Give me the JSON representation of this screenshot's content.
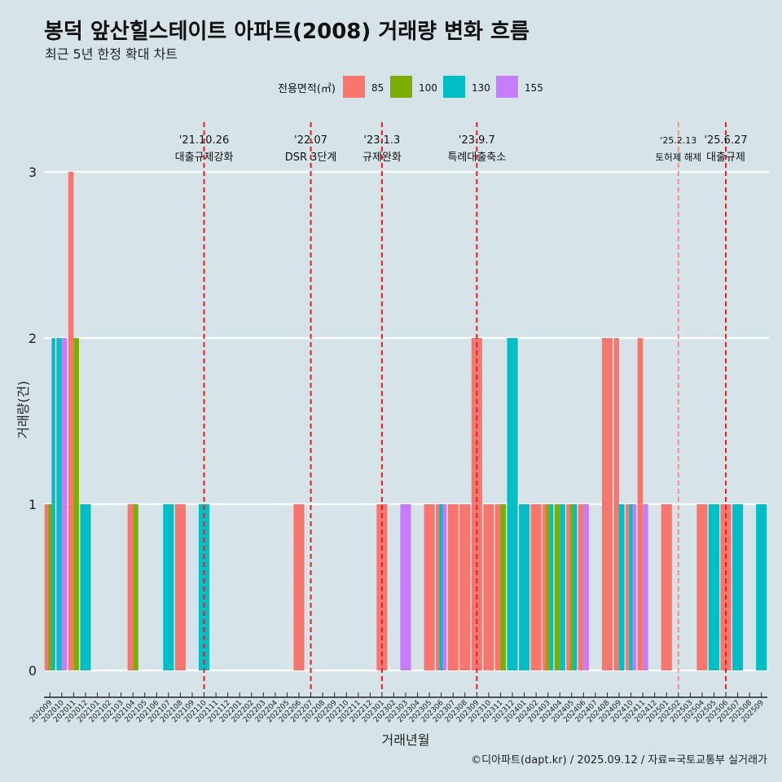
{
  "title": "봉덕 앞산힐스테이트 아파트(2008) 거래량 변화 흐름",
  "subtitle": "최근 5년 한정 확대 차트",
  "caption": "©디아파트(dapt.kr) / 2025.09.12 / 자료=국토교통부 실거래가",
  "chart_data": {
    "type": "bar",
    "xlabel": "거래년월",
    "ylabel": "거래량(건)",
    "ylim": [
      0,
      3
    ],
    "yticks": [
      0,
      1,
      2,
      3
    ],
    "legend": {
      "title": "전용면적(㎡)",
      "position": "top",
      "entries": [
        {
          "name": "85",
          "color": "#F8766D"
        },
        {
          "name": "100",
          "color": "#7CAE00"
        },
        {
          "name": "130",
          "color": "#00BFC4"
        },
        {
          "name": "155",
          "color": "#C77CFF"
        }
      ]
    },
    "categories": [
      "202009",
      "202010",
      "202011",
      "202012",
      "202101",
      "202102",
      "202103",
      "202104",
      "202105",
      "202106",
      "202107",
      "202108",
      "202109",
      "202110",
      "202111",
      "202112",
      "202201",
      "202202",
      "202203",
      "202204",
      "202205",
      "202206",
      "202207",
      "202208",
      "202209",
      "202210",
      "202211",
      "202212",
      "202301",
      "202302",
      "202303",
      "202304",
      "202305",
      "202306",
      "202307",
      "202308",
      "202309",
      "202310",
      "202311",
      "202312",
      "202401",
      "202402",
      "202403",
      "202404",
      "202405",
      "202406",
      "202407",
      "202408",
      "202409",
      "202410",
      "202411",
      "202412",
      "202501",
      "202502",
      "202503",
      "202504",
      "202505",
      "202506",
      "202507",
      "202508",
      "202509"
    ],
    "series": [
      {
        "name": "85",
        "color": "#F8766D",
        "values": [
          1,
          0,
          3,
          0,
          0,
          0,
          0,
          1,
          0,
          0,
          0,
          1,
          0,
          0,
          0,
          0,
          0,
          0,
          0,
          0,
          0,
          1,
          0,
          0,
          0,
          0,
          0,
          0,
          1,
          0,
          0,
          0,
          1,
          1,
          1,
          1,
          2,
          1,
          1,
          0,
          0,
          1,
          1,
          0,
          1,
          1,
          0,
          2,
          2,
          1,
          2,
          0,
          1,
          0,
          0,
          1,
          0,
          1,
          0,
          0,
          0
        ]
      },
      {
        "name": "100",
        "color": "#7CAE00",
        "values": [
          1,
          0,
          2,
          0,
          0,
          0,
          0,
          1,
          0,
          0,
          0,
          0,
          0,
          0,
          0,
          0,
          0,
          0,
          0,
          0,
          0,
          0,
          0,
          0,
          0,
          0,
          0,
          0,
          0,
          0,
          0,
          0,
          0,
          0,
          0,
          0,
          0,
          0,
          1,
          0,
          0,
          0,
          1,
          1,
          1,
          0,
          0,
          0,
          0,
          0,
          0,
          0,
          0,
          0,
          0,
          0,
          0,
          0,
          0,
          0,
          0
        ]
      },
      {
        "name": "130",
        "color": "#00BFC4",
        "values": [
          2,
          2,
          0,
          1,
          0,
          0,
          0,
          0,
          0,
          0,
          1,
          0,
          0,
          1,
          0,
          0,
          0,
          0,
          0,
          0,
          0,
          0,
          0,
          0,
          0,
          0,
          0,
          0,
          0,
          0,
          0,
          0,
          0,
          1,
          0,
          0,
          0,
          0,
          0,
          2,
          1,
          0,
          1,
          1,
          1,
          0,
          0,
          0,
          1,
          1,
          0,
          0,
          0,
          0,
          0,
          0,
          1,
          0,
          1,
          0,
          1
        ]
      },
      {
        "name": "155",
        "color": "#C77CFF",
        "values": [
          0,
          2,
          0,
          0,
          0,
          0,
          0,
          0,
          0,
          0,
          0,
          0,
          0,
          0,
          0,
          0,
          0,
          0,
          0,
          0,
          0,
          0,
          0,
          0,
          0,
          0,
          0,
          0,
          0,
          0,
          1,
          0,
          0,
          1,
          0,
          0,
          0,
          0,
          0,
          0,
          0,
          0,
          0,
          0,
          0,
          1,
          0,
          0,
          0,
          1,
          1,
          0,
          0,
          0,
          0,
          0,
          0,
          0,
          0,
          0,
          0
        ]
      }
    ],
    "events": [
      {
        "date_label": "'21.10.26",
        "label": "대출규제강화",
        "month": "202110"
      },
      {
        "date_label": "'22.07",
        "label": "DSR 3단계",
        "month": "202207"
      },
      {
        "date_label": "'23.1.3",
        "label": "규제완화",
        "month": "202301"
      },
      {
        "date_label": "'23.9.7",
        "label": "특례대출축소",
        "month": "202309"
      },
      {
        "date_label": "'25.2.13",
        "label": "토허제 해제",
        "month": "202502"
      },
      {
        "date_label": "'25.6.27",
        "label": "대출규제",
        "month": "202506"
      }
    ]
  }
}
